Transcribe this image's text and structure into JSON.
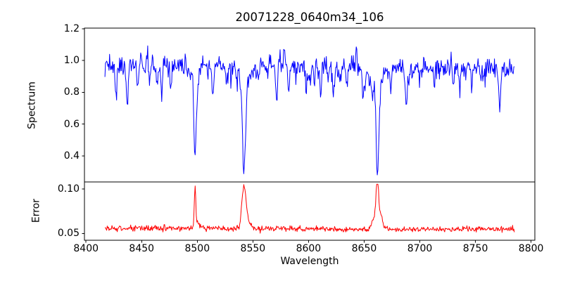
{
  "chart_data": {
    "type": "line",
    "title": "20071228_0640m34_106",
    "xlabel": "Wavelength",
    "legend": null,
    "grid": false,
    "xlim": [
      8398.6,
      8803.4
    ],
    "x_data_range": [
      8417,
      8785
    ],
    "n_points": 700,
    "seed": 11,
    "xticks": [
      {
        "value": 8400,
        "label": "8400"
      },
      {
        "value": 8450,
        "label": "8450"
      },
      {
        "value": 8500,
        "label": "8500"
      },
      {
        "value": 8550,
        "label": "8550"
      },
      {
        "value": 8600,
        "label": "8600"
      },
      {
        "value": 8650,
        "label": "8650"
      },
      {
        "value": 8700,
        "label": "8700"
      },
      {
        "value": 8750,
        "label": "8750"
      },
      {
        "value": 8800,
        "label": "8800"
      }
    ],
    "subplots": [
      {
        "name": "spectrum",
        "ylabel": "Spectrum",
        "line_color": "#0000ff",
        "line_width": 1,
        "ylim": [
          0.236,
          1.204
        ],
        "yticks": [
          {
            "value": 0.4,
            "label": "0.4"
          },
          {
            "value": 0.6,
            "label": "0.6"
          },
          {
            "value": 0.8,
            "label": "0.8"
          },
          {
            "value": 1.0,
            "label": "1.0"
          },
          {
            "value": 1.2,
            "label": "1.2"
          }
        ],
        "continuum": {
          "base": 0.963,
          "amp": 0.008,
          "period": 85
        },
        "noise_sigma": 0.034,
        "absorption_lines": [
          {
            "center": 8498.0,
            "core_depth": 0.52,
            "core_width": 1.0,
            "wing_depth": 0.08,
            "wing_width": 3.5,
            "min_flux": 0.38
          },
          {
            "center": 8542.1,
            "core_depth": 0.6,
            "core_width": 1.3,
            "wing_depth": 0.12,
            "wing_width": 5.0,
            "min_flux": 0.28
          },
          {
            "center": 8662.1,
            "core_depth": 0.57,
            "core_width": 1.2,
            "wing_depth": 0.11,
            "wing_width": 4.5,
            "min_flux": 0.32
          }
        ],
        "minor_lines": [
          {
            "c": 8427,
            "d": 0.16,
            "w": 0.7
          },
          {
            "c": 8437,
            "d": 0.3,
            "w": 0.8
          },
          {
            "c": 8447,
            "d": 0.1,
            "w": 0.6
          },
          {
            "c": 8457,
            "d": 0.13,
            "w": 0.6
          },
          {
            "c": 8468,
            "d": 0.2,
            "w": 0.7
          },
          {
            "c": 8476,
            "d": 0.1,
            "w": 0.5
          },
          {
            "c": 8514,
            "d": 0.21,
            "w": 0.8
          },
          {
            "c": 8526,
            "d": 0.12,
            "w": 0.6
          },
          {
            "c": 8536,
            "d": 0.1,
            "w": 0.5
          },
          {
            "c": 8555,
            "d": 0.1,
            "w": 0.5
          },
          {
            "c": 8582,
            "d": 0.16,
            "w": 0.7
          },
          {
            "c": 8598,
            "d": 0.13,
            "w": 0.6
          },
          {
            "c": 8611,
            "d": 0.16,
            "w": 0.7
          },
          {
            "c": 8622,
            "d": 0.13,
            "w": 0.6
          },
          {
            "c": 8649,
            "d": 0.12,
            "w": 0.6
          },
          {
            "c": 8674,
            "d": 0.15,
            "w": 0.7
          },
          {
            "c": 8688,
            "d": 0.24,
            "w": 0.9
          },
          {
            "c": 8713,
            "d": 0.13,
            "w": 0.6
          },
          {
            "c": 8736,
            "d": 0.17,
            "w": 0.7
          },
          {
            "c": 8747,
            "d": 0.11,
            "w": 0.6
          },
          {
            "c": 8772,
            "d": 0.2,
            "w": 0.8
          }
        ],
        "random_lines": {
          "count": 42,
          "depth_min": 0.03,
          "depth_max": 0.13,
          "width_min": 0.35,
          "width_max": 0.9
        },
        "peaks": [
          {
            "c": 8578,
            "a": 0.16,
            "w": 0.5
          },
          {
            "c": 8455,
            "a": 0.11,
            "w": 0.5
          },
          {
            "c": 8643,
            "a": 0.11,
            "w": 0.5
          },
          {
            "c": 8728,
            "a": 0.1,
            "w": 0.5
          }
        ],
        "value_clip": [
          0.28,
          1.17
        ]
      },
      {
        "name": "error",
        "ylabel": "Error",
        "line_color": "#ff0000",
        "line_width": 1,
        "ylim": [
          0.0425,
          0.108
        ],
        "yticks": [
          {
            "value": 0.05,
            "label": "0.05"
          },
          {
            "value": 0.1,
            "label": "0.10"
          }
        ],
        "baseline": {
          "base": 0.0553,
          "amp": 0.0006,
          "period": 60
        },
        "noise_sigma": 0.0015,
        "spikes": [
          {
            "c": 8498.0,
            "a": 0.045,
            "w": 0.7
          },
          {
            "c": 8500.5,
            "a": 0.006,
            "w": 1.5
          },
          {
            "c": 8540.5,
            "a": 0.022,
            "w": 1.2
          },
          {
            "c": 8542.5,
            "a": 0.033,
            "w": 1.5
          },
          {
            "c": 8545.0,
            "a": 0.01,
            "w": 2.5
          },
          {
            "c": 8659.0,
            "a": 0.012,
            "w": 2.0
          },
          {
            "c": 8661.8,
            "a": 0.05,
            "w": 1.0
          },
          {
            "c": 8664.0,
            "a": 0.018,
            "w": 2.2
          }
        ],
        "value_clip": [
          0.0455,
          0.1055
        ]
      }
    ]
  }
}
